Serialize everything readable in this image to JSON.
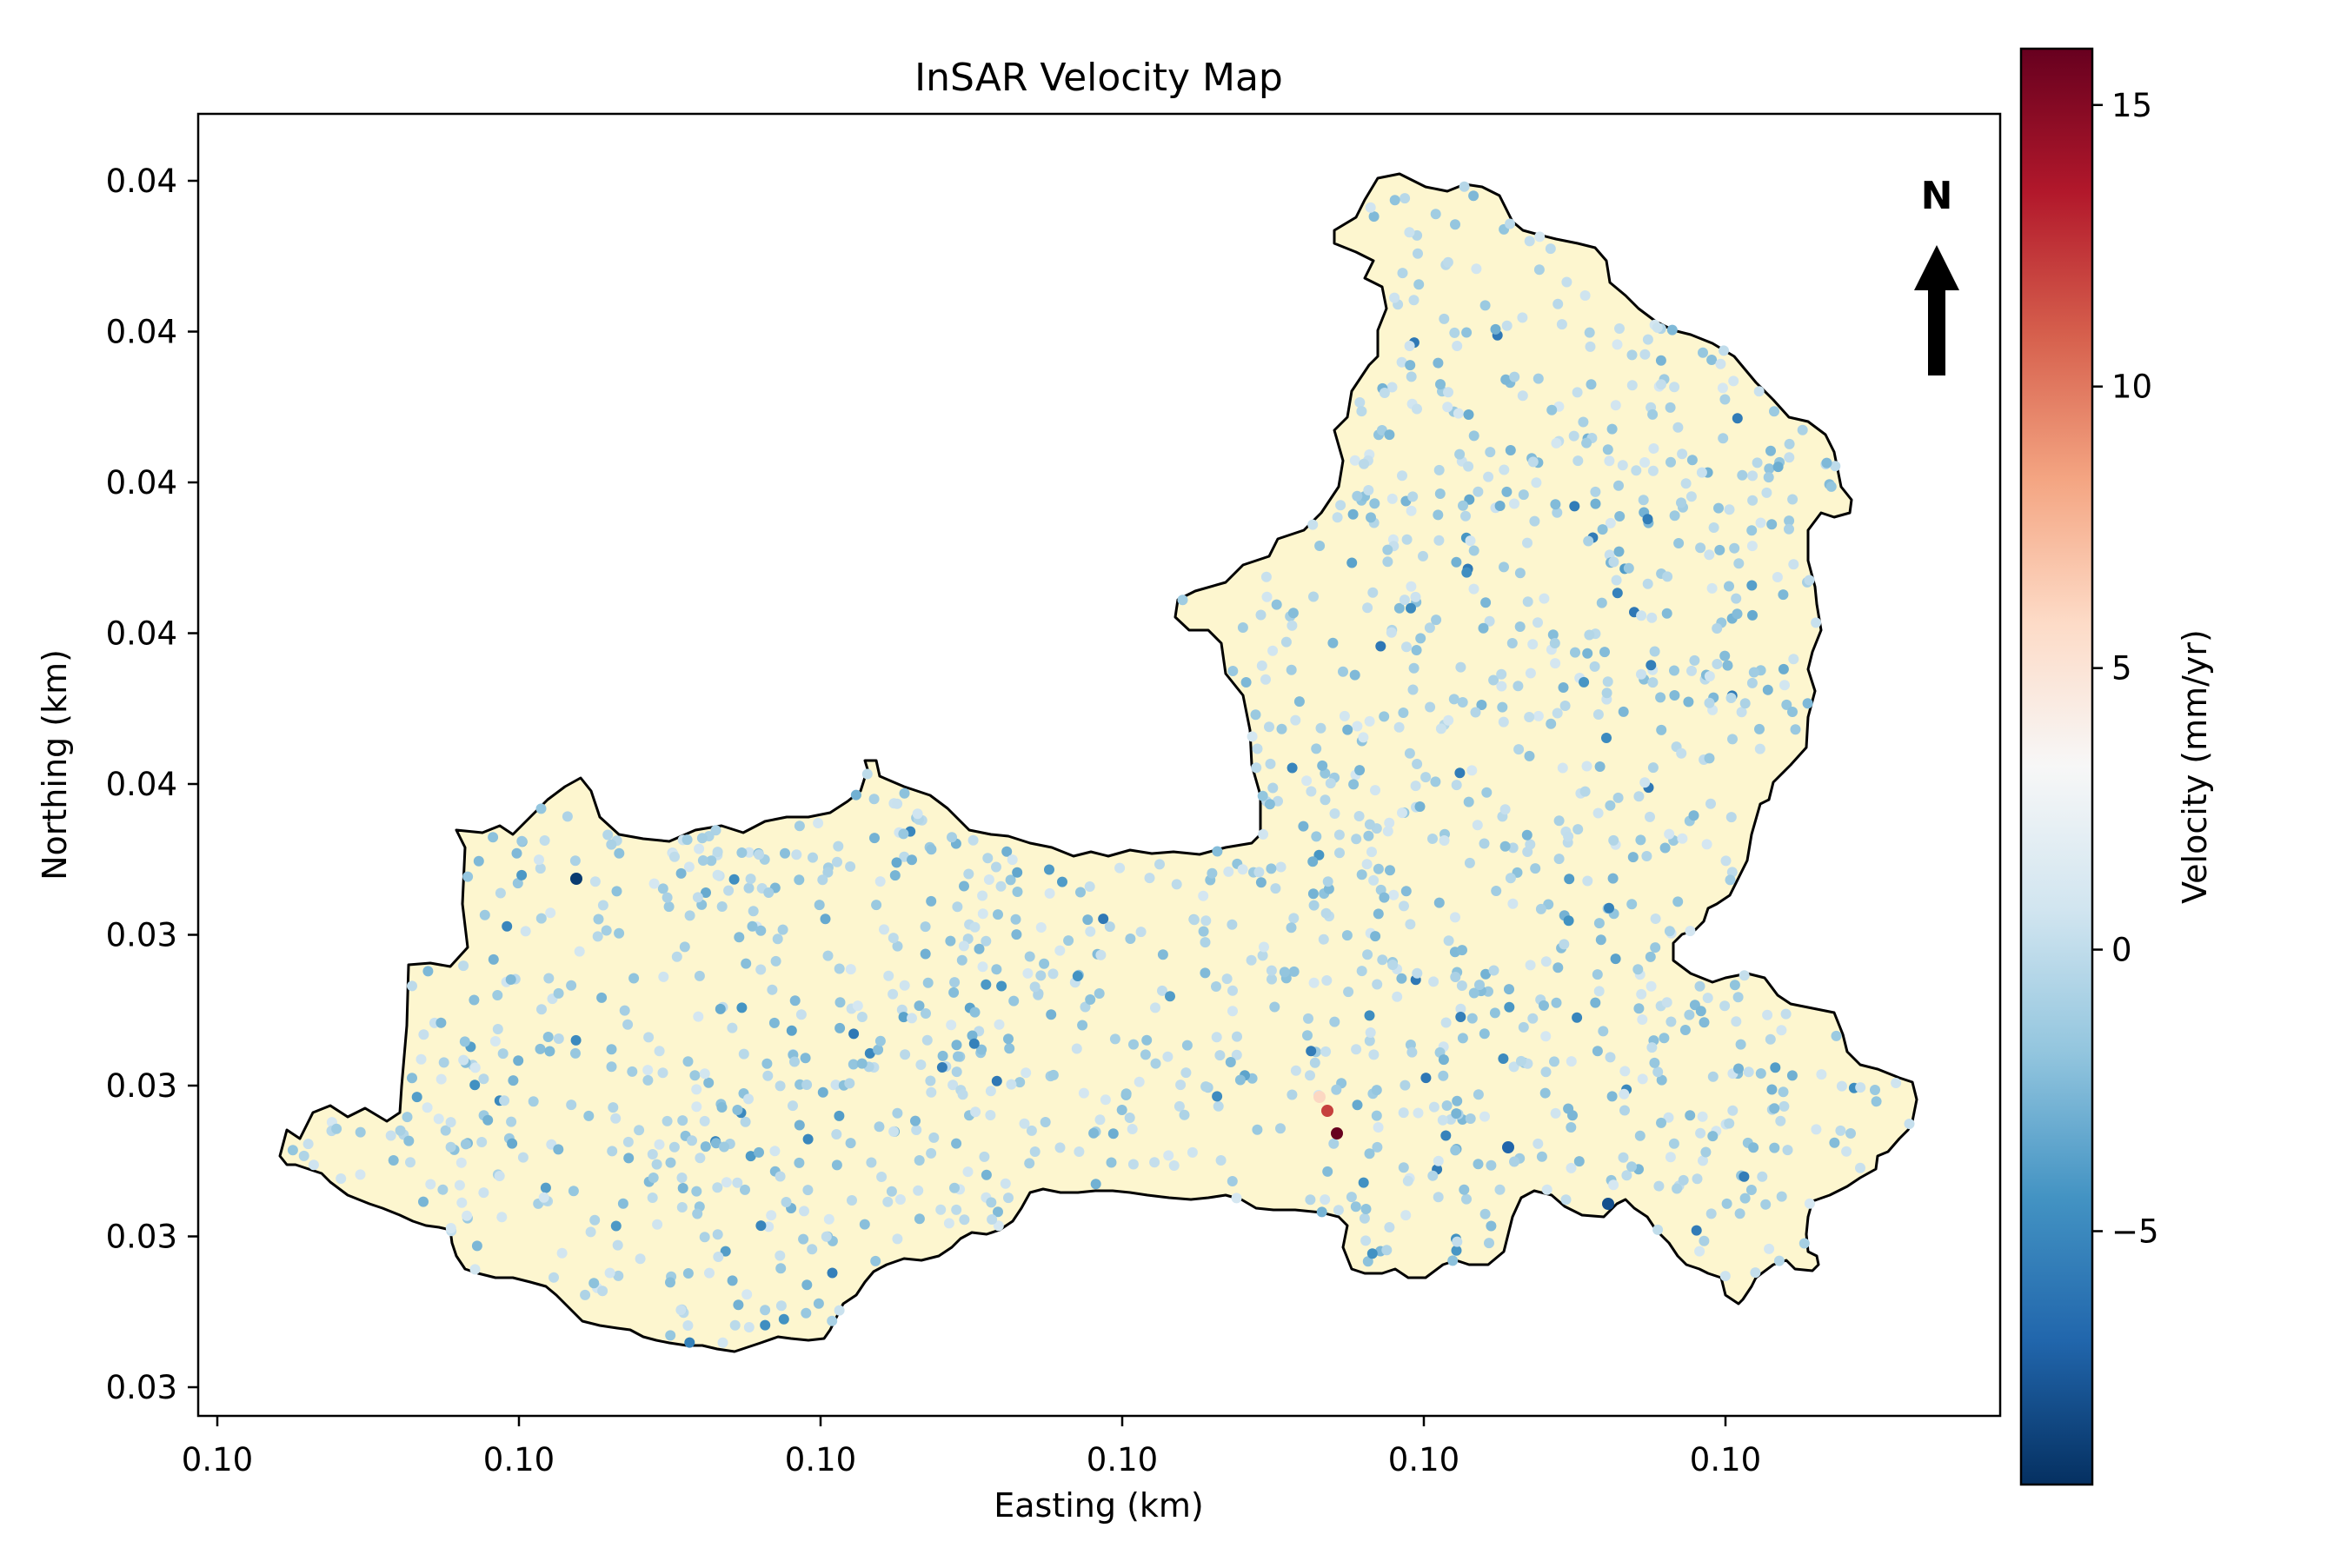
{
  "chart_data": {
    "type": "scatter",
    "title": "InSAR Velocity Map",
    "xlabel": "Easting (km)",
    "ylabel": "Northing (km)",
    "x_tick_labels": [
      "0.10",
      "0.10",
      "0.10",
      "0.10",
      "0.10",
      "0.10"
    ],
    "y_tick_labels": [
      "0.03",
      "0.03",
      "0.03",
      "0.03",
      "0.04",
      "0.04",
      "0.04",
      "0.04",
      "0.04"
    ],
    "colorbar": {
      "label": "Velocity (mm/yr)",
      "colormap": "RdBu_r",
      "range": [
        -9.5,
        16
      ],
      "ticks": [
        -5,
        0,
        5,
        10,
        15
      ],
      "tick_labels": [
        "−5",
        "0",
        "5",
        "10",
        "15"
      ],
      "colors": [
        "#053061",
        "#2166ac",
        "#4393c3",
        "#92c5de",
        "#d1e5f0",
        "#f7f7f7",
        "#fddbc7",
        "#f4a582",
        "#d6604d",
        "#b2182b",
        "#67001f"
      ]
    },
    "north_arrow": {
      "label": "N"
    },
    "basin_fill": "#fdf6cf",
    "basin_outline": "#000000",
    "grid": false,
    "legend": "none",
    "series": [
      {
        "name": "",
        "x": [
          0.1
        ],
        "y": [
          0.03
        ]
      }
    ],
    "velocity_summary": {
      "background_range": [
        -3,
        1
      ],
      "notable_points": [
        {
          "velocity": 16,
          "region": "south-central"
        },
        {
          "velocity": 12,
          "region": "south-central"
        },
        {
          "velocity": 6,
          "region": "south-central"
        },
        {
          "velocity": -9,
          "region": "west"
        },
        {
          "velocity": -8,
          "region": "south-east"
        },
        {
          "velocity": -7,
          "region": "south-east"
        }
      ]
    }
  }
}
